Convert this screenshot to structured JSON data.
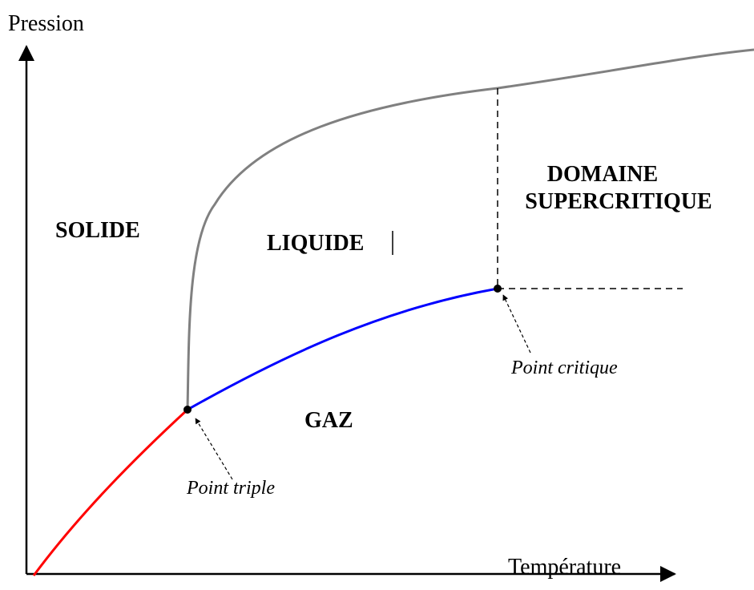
{
  "axes": {
    "y_label": "Pression",
    "x_label": "Température"
  },
  "regions": [
    {
      "label": "SOLIDE"
    },
    {
      "label": "LIQUIDE"
    },
    {
      "label_lines": [
        "DOMAINE",
        "SUPERCRITIQUE"
      ]
    },
    {
      "label": "GAZ"
    }
  ],
  "points": [
    {
      "label": "Point triple"
    },
    {
      "label": "Point critique"
    }
  ]
}
